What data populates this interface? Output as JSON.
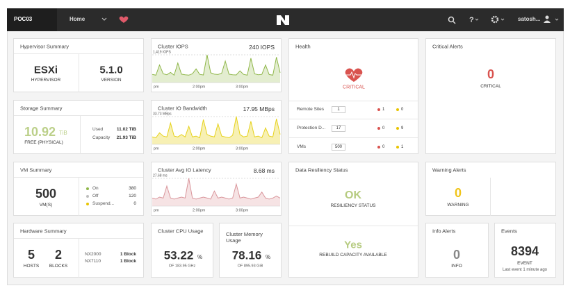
{
  "topbar": {
    "cluster": "POC03",
    "menu": "Home",
    "user": "satosh..."
  },
  "hypervisor": {
    "title": "Hypervisor Summary",
    "type": "ESXi",
    "type_label": "HYPERVISOR",
    "version": "5.1.0",
    "version_label": "VERSION"
  },
  "storage": {
    "title": "Storage Summary",
    "free": "10.92",
    "free_unit": "TiB",
    "free_label": "FREE (PHYSICAL)",
    "used_label": "Used",
    "used": "11.02 TiB",
    "capacity_label": "Capacity",
    "capacity": "21.93 TiB"
  },
  "vm": {
    "title": "VM Summary",
    "count": "500",
    "count_label": "VM(S)",
    "states": [
      {
        "name": "On",
        "value": "380",
        "color": "#8fb74a"
      },
      {
        "name": "Off",
        "value": "120",
        "color": "#bdbdbd"
      },
      {
        "name": "Suspend...",
        "value": "0",
        "color": "#e8c400"
      }
    ]
  },
  "hardware": {
    "title": "Hardware Summary",
    "hosts": "5",
    "hosts_label": "HOSTS",
    "blocks": "2",
    "blocks_label": "BLOCKS",
    "models": [
      {
        "name": "NX2000",
        "count": "1 Block"
      },
      {
        "name": "NX7110",
        "count": "1 Block"
      }
    ]
  },
  "charts": [
    {
      "type": "area",
      "title": "Cluster IOPS",
      "current": "240 IOPS",
      "color": "#8fb74a",
      "fill": "#e3edd0",
      "ylim": [
        0,
        1419
      ],
      "yticks": [
        {
          "value": 1419,
          "label": "1,419 IOPS"
        }
      ],
      "x_labels": [
        "pm",
        "2:00pm",
        "3:00pm"
      ],
      "values": [
        420,
        380,
        900,
        450,
        400,
        520,
        380,
        1000,
        430,
        400,
        380,
        450,
        700,
        420,
        390,
        1419,
        500,
        430,
        410,
        480,
        1100,
        430,
        400,
        390,
        600,
        420,
        380,
        1250,
        450,
        400,
        420,
        900,
        410,
        380,
        1300,
        500
      ]
    },
    {
      "type": "area",
      "title": "Cluster IO Bandwidth",
      "current": "17.95 MBps",
      "color": "#e6d21b",
      "fill": "#f7f0b4",
      "ylim": [
        0,
        33.73
      ],
      "yticks": [
        {
          "value": 33.73,
          "label": "33.73 MBps"
        }
      ],
      "x_labels": [
        "pm",
        "2:00pm",
        "3:00pm"
      ],
      "values": [
        9,
        8,
        14,
        10,
        9,
        26,
        10,
        9,
        12,
        9,
        22,
        9,
        10,
        8,
        30,
        12,
        10,
        9,
        25,
        10,
        9,
        8,
        11,
        33.73,
        12,
        9,
        10,
        28,
        9,
        10,
        8,
        20,
        10,
        9,
        31,
        12
      ]
    },
    {
      "type": "area",
      "title": "Cluster Avg IO Latency",
      "current": "8.68 ms",
      "color": "#d9959b",
      "fill": "#f6e3e4",
      "ylim": [
        0,
        27.68
      ],
      "yticks": [
        {
          "value": 27.68,
          "label": "27.68 ms"
        }
      ],
      "x_labels": [
        "pm",
        "2:00pm",
        "3:00pm"
      ],
      "values": [
        8,
        7,
        9,
        8,
        20,
        8,
        7,
        8,
        9,
        8,
        27.68,
        8,
        7,
        8,
        9,
        8,
        7,
        15,
        8,
        9,
        8,
        7,
        8,
        22,
        8,
        9,
        8,
        7,
        8,
        9,
        14,
        8,
        7,
        8,
        10,
        8
      ]
    }
  ],
  "cpu": {
    "title": "Cluster CPU Usage",
    "value": "53.22",
    "unit": "%",
    "of": "OF 183.95 GHz"
  },
  "memory": {
    "title": "Cluster Memory Usage",
    "value": "78.16",
    "unit": "%",
    "of": "OF 895.93 GiB"
  },
  "health": {
    "title": "Health",
    "status": "CRITICAL",
    "rows": [
      {
        "name": "Remote Sites",
        "count": "1",
        "critical": "1",
        "warning": "0"
      },
      {
        "name": "Protection D...",
        "count": "17",
        "critical": "0",
        "warning": "9"
      },
      {
        "name": "VMs",
        "count": "500",
        "critical": "0",
        "warning": "1"
      }
    ]
  },
  "resiliency": {
    "title": "Data Resiliency Status",
    "status": "OK",
    "status_label": "RESILIENCY STATUS",
    "rebuild": "Yes",
    "rebuild_label": "REBUILD CAPACITY AVAILABLE"
  },
  "critical_alerts": {
    "title": "Critical Alerts",
    "count": "0",
    "label": "CRITICAL"
  },
  "warning_alerts": {
    "title": "Warning Alerts",
    "count": "0",
    "label": "WARNING"
  },
  "info_alerts": {
    "title": "Info Alerts",
    "count": "0",
    "label": "INFO"
  },
  "events": {
    "title": "Events",
    "count": "8394",
    "label": "EVENT",
    "last": "Last event 1 minute ago"
  }
}
